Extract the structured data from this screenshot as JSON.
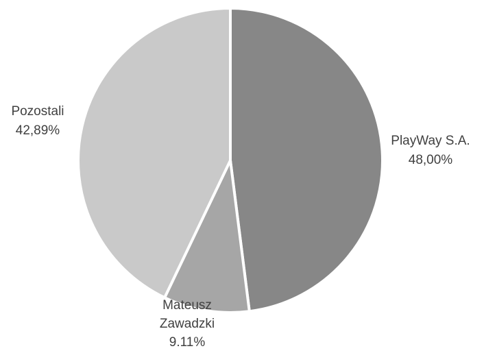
{
  "chart_data": {
    "type": "pie",
    "title": "",
    "start_angle_deg": 0,
    "direction": "clockwise",
    "slices": [
      {
        "name": "PlayWay S.A.",
        "value": 48.0,
        "value_label": "48,00%",
        "label_lines": [
          "PlayWay S.A.",
          "48,00%"
        ],
        "color": "#878787"
      },
      {
        "name": "Mateusz Zawadzki",
        "value": 9.11,
        "value_label": "9.11%",
        "label_lines": [
          "Mateusz",
          "Zawadzki",
          "9.11%"
        ],
        "color": "#a6a6a6"
      },
      {
        "name": "Pozostali",
        "value": 42.89,
        "value_label": "42,89%",
        "label_lines": [
          "Pozostali",
          "42,89%"
        ],
        "color": "#c9c9c9"
      }
    ],
    "legend": "none"
  }
}
